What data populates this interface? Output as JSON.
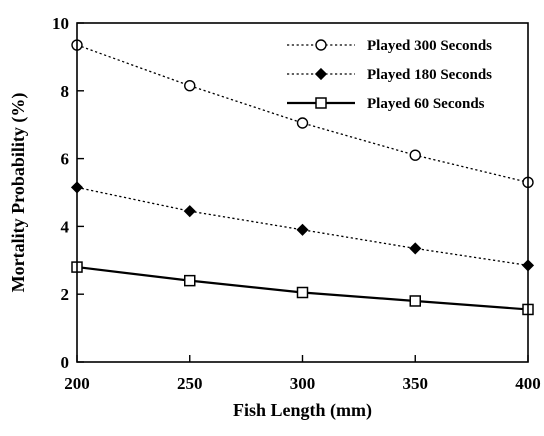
{
  "chart_data": {
    "type": "line",
    "xlabel": "Fish Length (mm)",
    "ylabel": "Mortality Probability (%)",
    "xlim": [
      200,
      400
    ],
    "ylim": [
      0,
      10
    ],
    "x_ticks": [
      "200",
      "250",
      "300",
      "350",
      "400"
    ],
    "y_ticks": [
      "0",
      "2",
      "4",
      "6",
      "8",
      "10"
    ],
    "x": [
      200,
      250,
      300,
      350,
      400
    ],
    "grid": false,
    "legend_position": "top-right",
    "series": [
      {
        "name": "Played 300 Seconds",
        "values": [
          9.35,
          8.15,
          7.05,
          6.1,
          5.3
        ],
        "marker": "circle-open",
        "line_style": "dotted",
        "color": "#000000"
      },
      {
        "name": "Played 180 Seconds",
        "values": [
          5.15,
          4.45,
          3.9,
          3.35,
          2.85
        ],
        "marker": "diamond-filled",
        "line_style": "dotted",
        "color": "#000000"
      },
      {
        "name": "Played 60 Seconds",
        "values": [
          2.8,
          2.4,
          2.05,
          1.8,
          1.55
        ],
        "marker": "square-open",
        "line_style": "solid",
        "color": "#000000"
      }
    ]
  }
}
